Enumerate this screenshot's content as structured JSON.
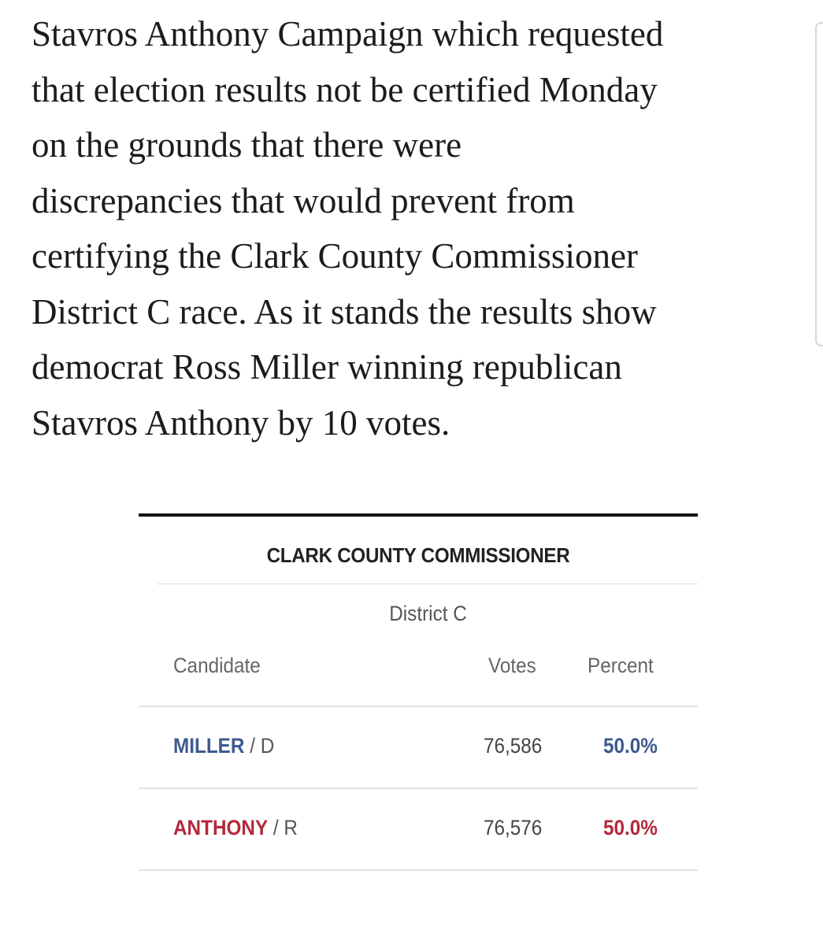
{
  "article": {
    "lines": [
      "Stavros Anthony Campaign which requested",
      "that election results not be certified Monday",
      "on the grounds that there were",
      "discrepancies that would prevent from",
      "certifying the Clark County Commissioner",
      "District C race. As it stands the results show",
      "democrat Ross Miller winning republican",
      "Stavros Anthony by 10 votes."
    ]
  },
  "results": {
    "race_title": "CLARK COUNTY COMMISSIONER",
    "district": "District C",
    "headers": {
      "candidate": "Candidate",
      "votes": "Votes",
      "percent": "Percent"
    },
    "candidates": [
      {
        "name": "MILLER",
        "party_sep": " / D",
        "votes": "76,586",
        "percent": "50.0%",
        "color": "#3d5a8f"
      },
      {
        "name": "ANTHONY",
        "party_sep": " / R",
        "votes": "76,576",
        "percent": "50.0%",
        "color": "#b4283a"
      }
    ]
  }
}
